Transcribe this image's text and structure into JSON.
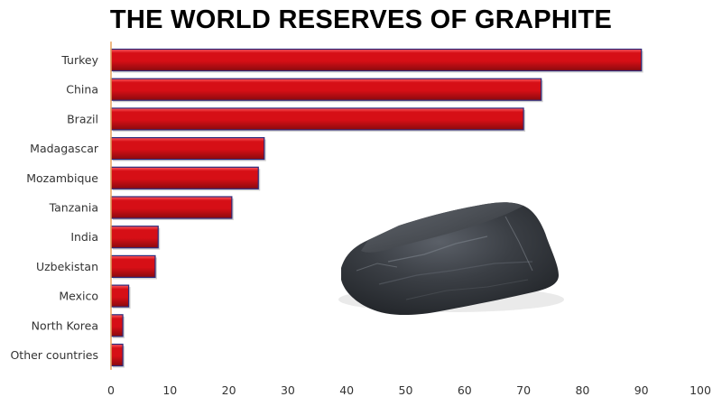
{
  "title": "THE WORLD RESERVES OF GRAPHITE",
  "colors": {
    "bar_fill": "#d60f16",
    "bar_highlight": "#ff5a60",
    "bar_shadow": "#8a0a0e",
    "bar_outline": "#2e2a7a",
    "axis_line": "#e8a15a",
    "label_text": "#333333"
  },
  "image": {
    "name": "graphite-rock"
  },
  "chart_data": {
    "type": "bar",
    "orientation": "horizontal",
    "title": "THE WORLD RESERVES OF GRAPHITE",
    "categories": [
      "Turkey",
      "China",
      "Brazil",
      "Madagascar",
      "Mozambique",
      "Tanzania",
      "India",
      "Uzbekistan",
      "Mexico",
      "North Korea",
      "Other countries"
    ],
    "values": [
      90,
      73,
      70,
      26,
      25,
      20.5,
      8,
      7.5,
      3,
      2,
      2
    ],
    "xlim": [
      0,
      100
    ],
    "xticks": [
      "0",
      "10",
      "20",
      "30",
      "40",
      "50",
      "60",
      "70",
      "80",
      "90",
      "100"
    ],
    "grid": false,
    "legend": "none",
    "xlabel": "",
    "ylabel": ""
  }
}
